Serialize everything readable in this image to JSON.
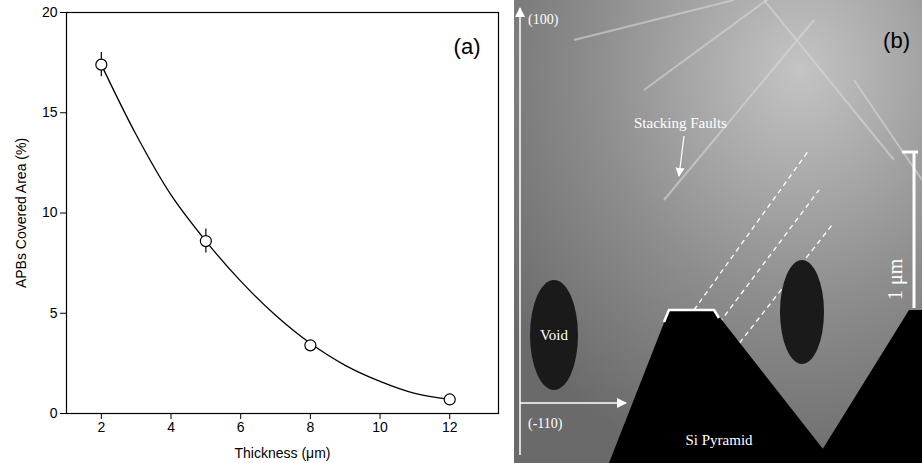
{
  "chart_data": {
    "type": "scatter",
    "panel_label": "(a)",
    "x_label": "Thickness (μm)",
    "y_label": "APBs Covered Area (%)",
    "xlim": [
      1,
      13.4
    ],
    "xticks": [
      2,
      4,
      6,
      8,
      10,
      12
    ],
    "ylim": [
      0,
      20
    ],
    "yticks": [
      0,
      5,
      10,
      15,
      20
    ],
    "x": [
      2,
      5,
      8,
      12
    ],
    "values": [
      17.4,
      8.6,
      3.4,
      0.7
    ],
    "error": [
      0.6,
      0.6,
      0.2,
      0.2
    ],
    "color": "#000000",
    "marker": "open circle",
    "fit_curve": {
      "x": [
        2,
        3,
        4,
        5,
        6,
        7,
        8,
        9,
        10,
        11,
        12
      ],
      "values": [
        17.4,
        13.9,
        10.9,
        8.6,
        6.6,
        4.9,
        3.5,
        2.4,
        1.6,
        1.0,
        0.7
      ],
      "line_style": "solid"
    }
  },
  "micrograph": {
    "panel_label": "(b)",
    "labels": {
      "vertical_axis": "(100)",
      "horizontal_axis": "(-110)",
      "stacking_faults": "Stacking Faults",
      "void": "Void",
      "pyramid": "Si Pyramid",
      "scale_bar": "1 μm"
    }
  }
}
